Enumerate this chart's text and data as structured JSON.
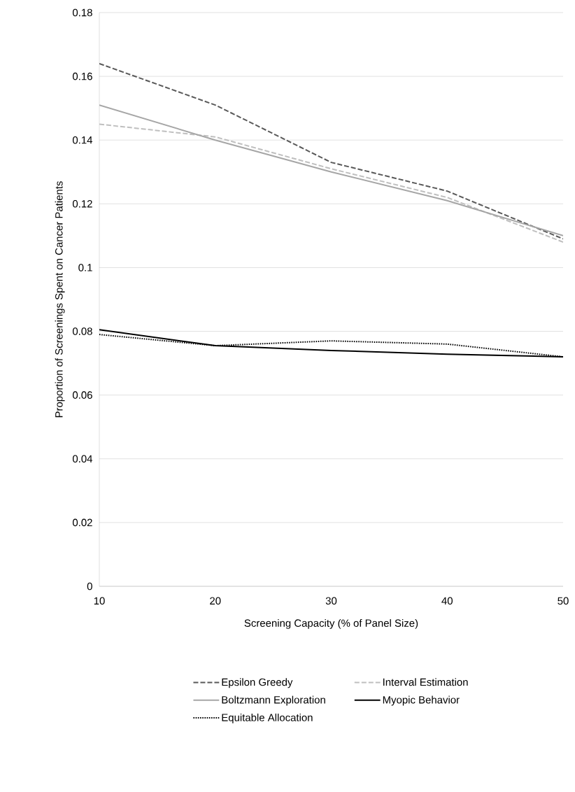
{
  "chart_data": {
    "type": "line",
    "xlabel": "Screening Capacity (% of Panel Size)",
    "ylabel": "Proportion of Screenings Spent on Cancer Patients",
    "x": [
      10,
      20,
      30,
      40,
      50
    ],
    "series": [
      {
        "name": "Epsilon Greedy",
        "color": "#595959",
        "line_style": "dashed",
        "values": [
          0.164,
          0.151,
          0.133,
          0.124,
          0.109
        ]
      },
      {
        "name": "Interval Estimation",
        "color": "#bfbfbf",
        "line_style": "dashed",
        "values": [
          0.145,
          0.141,
          0.131,
          0.122,
          0.108
        ]
      },
      {
        "name": "Boltzmann Exploration",
        "color": "#a6a6a6",
        "line_style": "solid",
        "values": [
          0.151,
          0.14,
          0.13,
          0.121,
          0.11
        ]
      },
      {
        "name": "Myopic Behavior",
        "color": "#000000",
        "line_style": "solid",
        "values": [
          0.0805,
          0.0755,
          0.074,
          0.0728,
          0.072
        ]
      },
      {
        "name": "Equitable Allocation",
        "color": "#000000",
        "line_style": "dotted",
        "values": [
          0.079,
          0.0755,
          0.077,
          0.076,
          0.072
        ]
      }
    ],
    "xlim": [
      10,
      50
    ],
    "xticks": [
      10,
      20,
      30,
      40,
      50
    ],
    "ylim": [
      0,
      0.18
    ],
    "yticks": [
      0,
      0.02,
      0.04,
      0.06,
      0.08,
      0.1,
      0.12,
      0.14,
      0.16,
      0.18
    ],
    "grid": "y",
    "legend": "bottom",
    "marker": "none"
  }
}
